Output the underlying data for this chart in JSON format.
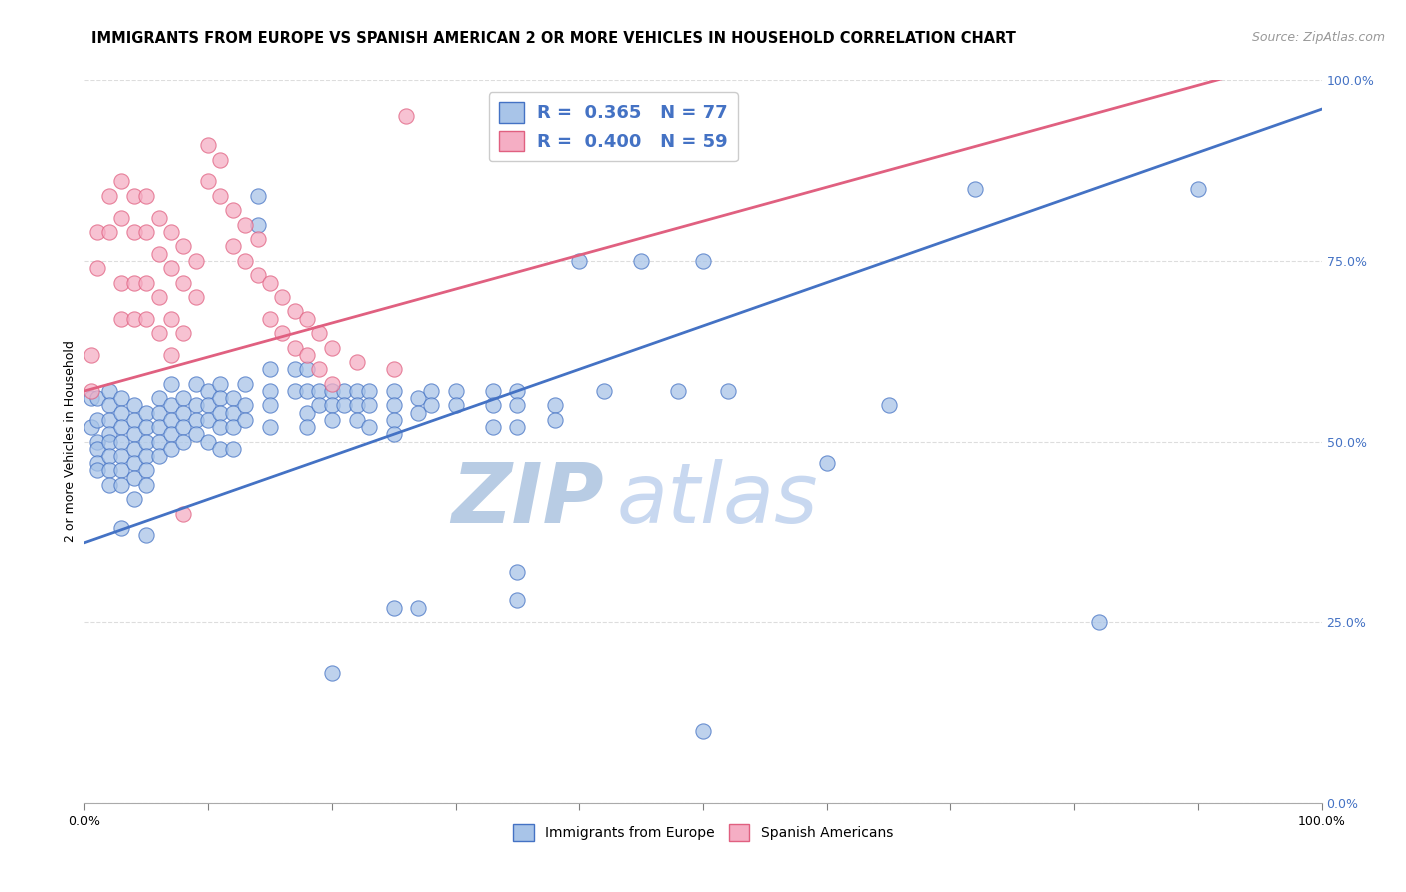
{
  "title": "IMMIGRANTS FROM EUROPE VS SPANISH AMERICAN 2 OR MORE VEHICLES IN HOUSEHOLD CORRELATION CHART",
  "source": "Source: ZipAtlas.com",
  "ylabel": "2 or more Vehicles in Household",
  "ytick_labels": [
    "0.0%",
    "25.0%",
    "50.0%",
    "75.0%",
    "100.0%"
  ],
  "ytick_values": [
    0.0,
    0.25,
    0.5,
    0.75,
    1.0
  ],
  "xtick_labels": [
    "0.0%",
    "100.0%"
  ],
  "xlim": [
    0.0,
    1.0
  ],
  "ylim": [
    0.0,
    1.0
  ],
  "blue_R": 0.365,
  "blue_N": 77,
  "pink_R": 0.4,
  "pink_N": 59,
  "blue_color": "#a8c4e8",
  "pink_color": "#f5aec4",
  "blue_line_color": "#4472c4",
  "pink_line_color": "#e06080",
  "legend_label_blue": "Immigrants from Europe",
  "legend_label_pink": "Spanish Americans",
  "watermark_zip": "ZIP",
  "watermark_atlas": "atlas",
  "blue_points": [
    [
      0.005,
      0.56
    ],
    [
      0.005,
      0.52
    ],
    [
      0.01,
      0.56
    ],
    [
      0.01,
      0.53
    ],
    [
      0.01,
      0.5
    ],
    [
      0.01,
      0.49
    ],
    [
      0.01,
      0.47
    ],
    [
      0.01,
      0.46
    ],
    [
      0.02,
      0.57
    ],
    [
      0.02,
      0.55
    ],
    [
      0.02,
      0.53
    ],
    [
      0.02,
      0.51
    ],
    [
      0.02,
      0.5
    ],
    [
      0.02,
      0.48
    ],
    [
      0.02,
      0.46
    ],
    [
      0.02,
      0.44
    ],
    [
      0.03,
      0.56
    ],
    [
      0.03,
      0.54
    ],
    [
      0.03,
      0.52
    ],
    [
      0.03,
      0.5
    ],
    [
      0.03,
      0.48
    ],
    [
      0.03,
      0.46
    ],
    [
      0.03,
      0.44
    ],
    [
      0.03,
      0.38
    ],
    [
      0.04,
      0.55
    ],
    [
      0.04,
      0.53
    ],
    [
      0.04,
      0.51
    ],
    [
      0.04,
      0.49
    ],
    [
      0.04,
      0.47
    ],
    [
      0.04,
      0.45
    ],
    [
      0.04,
      0.42
    ],
    [
      0.05,
      0.54
    ],
    [
      0.05,
      0.52
    ],
    [
      0.05,
      0.5
    ],
    [
      0.05,
      0.48
    ],
    [
      0.05,
      0.46
    ],
    [
      0.05,
      0.44
    ],
    [
      0.05,
      0.37
    ],
    [
      0.06,
      0.56
    ],
    [
      0.06,
      0.54
    ],
    [
      0.06,
      0.52
    ],
    [
      0.06,
      0.5
    ],
    [
      0.06,
      0.48
    ],
    [
      0.07,
      0.58
    ],
    [
      0.07,
      0.55
    ],
    [
      0.07,
      0.53
    ],
    [
      0.07,
      0.51
    ],
    [
      0.07,
      0.49
    ],
    [
      0.08,
      0.56
    ],
    [
      0.08,
      0.54
    ],
    [
      0.08,
      0.52
    ],
    [
      0.08,
      0.5
    ],
    [
      0.09,
      0.58
    ],
    [
      0.09,
      0.55
    ],
    [
      0.09,
      0.53
    ],
    [
      0.09,
      0.51
    ],
    [
      0.1,
      0.57
    ],
    [
      0.1,
      0.55
    ],
    [
      0.1,
      0.53
    ],
    [
      0.1,
      0.5
    ],
    [
      0.11,
      0.58
    ],
    [
      0.11,
      0.56
    ],
    [
      0.11,
      0.54
    ],
    [
      0.11,
      0.52
    ],
    [
      0.11,
      0.49
    ],
    [
      0.12,
      0.56
    ],
    [
      0.12,
      0.54
    ],
    [
      0.12,
      0.52
    ],
    [
      0.12,
      0.49
    ],
    [
      0.13,
      0.58
    ],
    [
      0.13,
      0.55
    ],
    [
      0.13,
      0.53
    ],
    [
      0.14,
      0.84
    ],
    [
      0.14,
      0.8
    ],
    [
      0.15,
      0.6
    ],
    [
      0.15,
      0.57
    ],
    [
      0.15,
      0.55
    ],
    [
      0.15,
      0.52
    ],
    [
      0.17,
      0.6
    ],
    [
      0.17,
      0.57
    ],
    [
      0.18,
      0.6
    ],
    [
      0.18,
      0.57
    ],
    [
      0.18,
      0.54
    ],
    [
      0.18,
      0.52
    ],
    [
      0.19,
      0.57
    ],
    [
      0.19,
      0.55
    ],
    [
      0.2,
      0.57
    ],
    [
      0.2,
      0.55
    ],
    [
      0.2,
      0.53
    ],
    [
      0.21,
      0.57
    ],
    [
      0.21,
      0.55
    ],
    [
      0.22,
      0.57
    ],
    [
      0.22,
      0.55
    ],
    [
      0.22,
      0.53
    ],
    [
      0.23,
      0.57
    ],
    [
      0.23,
      0.55
    ],
    [
      0.23,
      0.52
    ],
    [
      0.25,
      0.57
    ],
    [
      0.25,
      0.55
    ],
    [
      0.25,
      0.53
    ],
    [
      0.25,
      0.51
    ],
    [
      0.27,
      0.56
    ],
    [
      0.27,
      0.54
    ],
    [
      0.28,
      0.57
    ],
    [
      0.28,
      0.55
    ],
    [
      0.3,
      0.57
    ],
    [
      0.3,
      0.55
    ],
    [
      0.33,
      0.57
    ],
    [
      0.33,
      0.55
    ],
    [
      0.33,
      0.52
    ],
    [
      0.35,
      0.57
    ],
    [
      0.35,
      0.55
    ],
    [
      0.35,
      0.52
    ],
    [
      0.38,
      0.55
    ],
    [
      0.38,
      0.53
    ],
    [
      0.4,
      0.75
    ],
    [
      0.42,
      0.57
    ],
    [
      0.45,
      0.75
    ],
    [
      0.48,
      0.57
    ],
    [
      0.5,
      0.75
    ],
    [
      0.52,
      0.57
    ],
    [
      0.6,
      0.47
    ],
    [
      0.65,
      0.55
    ],
    [
      0.72,
      0.85
    ],
    [
      0.82,
      0.25
    ],
    [
      0.9,
      0.85
    ],
    [
      0.5,
      0.1
    ],
    [
      0.2,
      0.18
    ],
    [
      0.25,
      0.27
    ],
    [
      0.27,
      0.27
    ],
    [
      0.35,
      0.32
    ],
    [
      0.35,
      0.28
    ]
  ],
  "pink_points": [
    [
      0.005,
      0.62
    ],
    [
      0.005,
      0.57
    ],
    [
      0.01,
      0.79
    ],
    [
      0.01,
      0.74
    ],
    [
      0.02,
      0.84
    ],
    [
      0.02,
      0.79
    ],
    [
      0.03,
      0.86
    ],
    [
      0.03,
      0.81
    ],
    [
      0.03,
      0.72
    ],
    [
      0.03,
      0.67
    ],
    [
      0.04,
      0.84
    ],
    [
      0.04,
      0.79
    ],
    [
      0.04,
      0.72
    ],
    [
      0.04,
      0.67
    ],
    [
      0.05,
      0.84
    ],
    [
      0.05,
      0.79
    ],
    [
      0.05,
      0.72
    ],
    [
      0.05,
      0.67
    ],
    [
      0.06,
      0.81
    ],
    [
      0.06,
      0.76
    ],
    [
      0.06,
      0.7
    ],
    [
      0.06,
      0.65
    ],
    [
      0.07,
      0.79
    ],
    [
      0.07,
      0.74
    ],
    [
      0.07,
      0.67
    ],
    [
      0.07,
      0.62
    ],
    [
      0.08,
      0.77
    ],
    [
      0.08,
      0.72
    ],
    [
      0.08,
      0.65
    ],
    [
      0.08,
      0.4
    ],
    [
      0.09,
      0.75
    ],
    [
      0.09,
      0.7
    ],
    [
      0.1,
      0.91
    ],
    [
      0.1,
      0.86
    ],
    [
      0.11,
      0.89
    ],
    [
      0.11,
      0.84
    ],
    [
      0.12,
      0.82
    ],
    [
      0.12,
      0.77
    ],
    [
      0.13,
      0.8
    ],
    [
      0.13,
      0.75
    ],
    [
      0.14,
      0.78
    ],
    [
      0.14,
      0.73
    ],
    [
      0.15,
      0.72
    ],
    [
      0.15,
      0.67
    ],
    [
      0.16,
      0.7
    ],
    [
      0.16,
      0.65
    ],
    [
      0.17,
      0.68
    ],
    [
      0.17,
      0.63
    ],
    [
      0.18,
      0.67
    ],
    [
      0.18,
      0.62
    ],
    [
      0.19,
      0.65
    ],
    [
      0.19,
      0.6
    ],
    [
      0.2,
      0.63
    ],
    [
      0.2,
      0.58
    ],
    [
      0.22,
      0.61
    ],
    [
      0.25,
      0.6
    ],
    [
      0.26,
      0.95
    ]
  ],
  "blue_trend": [
    0.0,
    1.0,
    0.36,
    0.96
  ],
  "pink_trend": [
    0.0,
    1.0,
    0.57,
    1.04
  ],
  "grid_color": "#dddddd",
  "background_color": "#ffffff",
  "title_fontsize": 10.5,
  "axis_label_fontsize": 9,
  "tick_fontsize": 9,
  "legend_fontsize": 12,
  "watermark_color": "#c8d8f0",
  "watermark_fontsize": 60,
  "source_fontsize": 9
}
